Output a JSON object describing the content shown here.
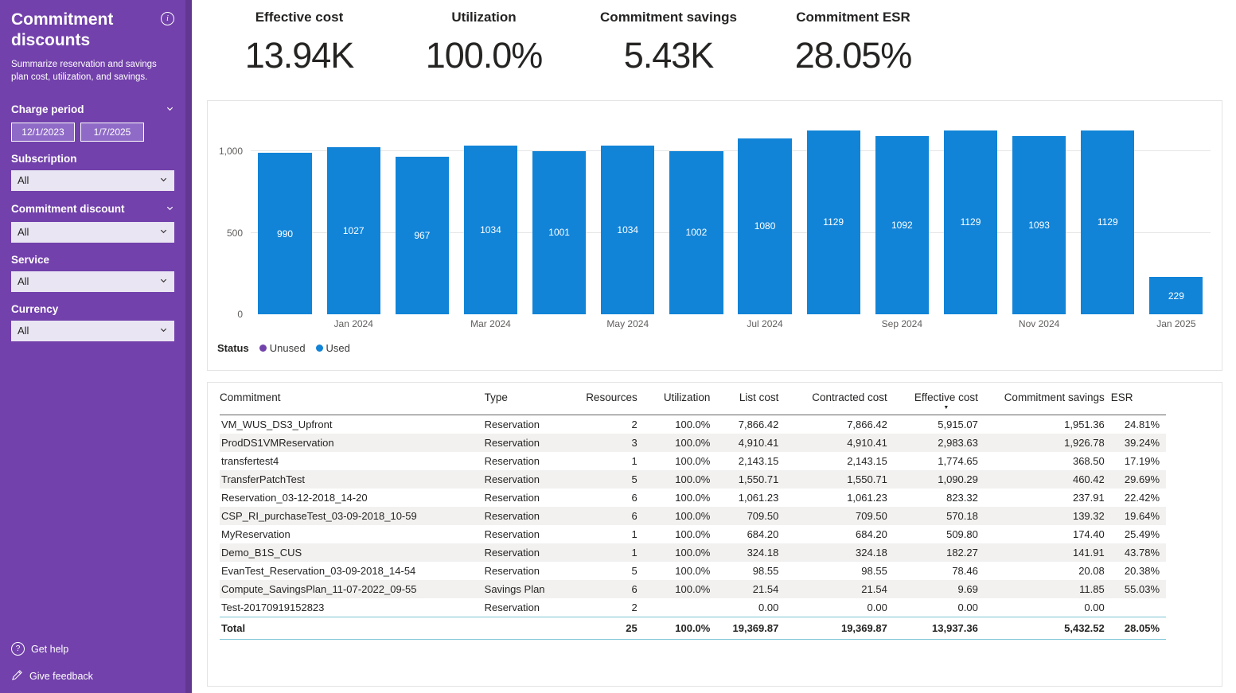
{
  "sidebar": {
    "title": "Commitment discounts",
    "subtitle": "Summarize reservation and savings plan cost, utilization, and savings.",
    "background_color": "#7241AB",
    "filters": [
      {
        "label": "Charge period",
        "type": "daterange",
        "from": "12/1/2023",
        "to": "1/7/2025",
        "collapsible": true
      },
      {
        "label": "Subscription",
        "type": "dropdown",
        "value": "All",
        "collapsible": false
      },
      {
        "label": "Commitment discount",
        "type": "dropdown",
        "value": "All",
        "collapsible": true
      },
      {
        "label": "Service",
        "type": "dropdown",
        "value": "All",
        "collapsible": false
      },
      {
        "label": "Currency",
        "type": "dropdown",
        "value": "All",
        "collapsible": false
      }
    ],
    "footer": {
      "get_help": "Get help",
      "give_feedback": "Give feedback"
    }
  },
  "kpis": [
    {
      "label": "Effective cost",
      "value": "13.94K"
    },
    {
      "label": "Utilization",
      "value": "100.0%"
    },
    {
      "label": "Commitment savings",
      "value": "5.43K"
    },
    {
      "label": "Commitment ESR",
      "value": "28.05%"
    }
  ],
  "chart_data": {
    "type": "bar",
    "title": "",
    "categories": [
      "Dec 2023",
      "Jan 2024",
      "Feb 2024",
      "Mar 2024",
      "Apr 2024",
      "May 2024",
      "Jun 2024",
      "Jul 2024",
      "Aug 2024",
      "Sep 2024",
      "Oct 2024",
      "Nov 2024",
      "Dec 2024",
      "Jan 2025"
    ],
    "values": [
      990,
      1027,
      967,
      1034,
      1001,
      1034,
      1002,
      1080,
      1129,
      1092,
      1129,
      1093,
      1129,
      229
    ],
    "bar_color": "#1184D8",
    "xlabel": "",
    "ylabel": "",
    "ylim": [
      0,
      1230
    ],
    "grid": true,
    "y_ticks": [
      {
        "label": "0",
        "value": 0
      },
      {
        "label": "500",
        "value": 500
      },
      {
        "label": "1,000",
        "value": 1000
      }
    ],
    "x_tick_labels_shown": [
      "Jan 2024",
      "Mar 2024",
      "May 2024",
      "Jul 2024",
      "Sep 2024",
      "Nov 2024",
      "Jan 2025"
    ],
    "legend": {
      "title": "Status",
      "position": "bottom-left",
      "items": [
        {
          "label": "Unused",
          "color": "#7243AB"
        },
        {
          "label": "Used",
          "color": "#1184D8"
        }
      ]
    }
  },
  "table": {
    "columns": [
      "Commitment",
      "Type",
      "Resources",
      "Utilization",
      "List cost",
      "Contracted cost",
      "Effective cost",
      "Commitment savings",
      "ESR"
    ],
    "sort": {
      "column": "Effective cost",
      "direction": "desc"
    },
    "rows": [
      [
        "VM_WUS_DS3_Upfront",
        "Reservation",
        "2",
        "100.0%",
        "7,866.42",
        "7,866.42",
        "5,915.07",
        "1,951.36",
        "24.81%"
      ],
      [
        "ProdDS1VMReservation",
        "Reservation",
        "3",
        "100.0%",
        "4,910.41",
        "4,910.41",
        "2,983.63",
        "1,926.78",
        "39.24%"
      ],
      [
        "transfertest4",
        "Reservation",
        "1",
        "100.0%",
        "2,143.15",
        "2,143.15",
        "1,774.65",
        "368.50",
        "17.19%"
      ],
      [
        "TransferPatchTest",
        "Reservation",
        "5",
        "100.0%",
        "1,550.71",
        "1,550.71",
        "1,090.29",
        "460.42",
        "29.69%"
      ],
      [
        "Reservation_03-12-2018_14-20",
        "Reservation",
        "6",
        "100.0%",
        "1,061.23",
        "1,061.23",
        "823.32",
        "237.91",
        "22.42%"
      ],
      [
        "CSP_RI_purchaseTest_03-09-2018_10-59",
        "Reservation",
        "6",
        "100.0%",
        "709.50",
        "709.50",
        "570.18",
        "139.32",
        "19.64%"
      ],
      [
        "MyReservation",
        "Reservation",
        "1",
        "100.0%",
        "684.20",
        "684.20",
        "509.80",
        "174.40",
        "25.49%"
      ],
      [
        "Demo_B1S_CUS",
        "Reservation",
        "1",
        "100.0%",
        "324.18",
        "324.18",
        "182.27",
        "141.91",
        "43.78%"
      ],
      [
        "EvanTest_Reservation_03-09-2018_14-54",
        "Reservation",
        "5",
        "100.0%",
        "98.55",
        "98.55",
        "78.46",
        "20.08",
        "20.38%"
      ],
      [
        "Compute_SavingsPlan_11-07-2022_09-55",
        "Savings Plan",
        "6",
        "100.0%",
        "21.54",
        "21.54",
        "9.69",
        "11.85",
        "55.03%"
      ],
      [
        "Test-20170919152823",
        "Reservation",
        "2",
        "",
        "0.00",
        "0.00",
        "0.00",
        "0.00",
        ""
      ]
    ],
    "total": [
      "Total",
      "",
      "25",
      "100.0%",
      "19,369.87",
      "19,369.87",
      "13,937.36",
      "5,432.52",
      "28.05%"
    ]
  }
}
